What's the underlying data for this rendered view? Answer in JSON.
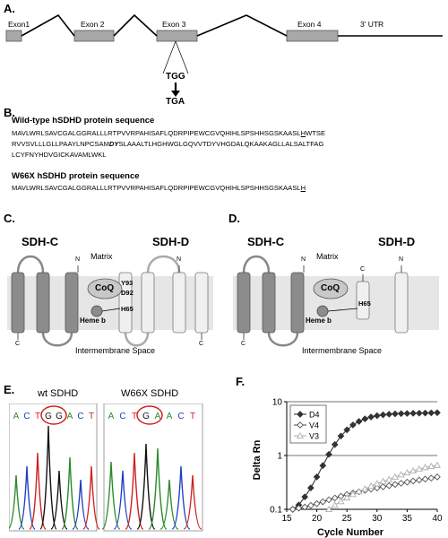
{
  "panels": {
    "a": "A.",
    "b": "B.",
    "c": "C.",
    "d": "D.",
    "e": "E.",
    "f": "F."
  },
  "gene": {
    "exons": [
      "Exon1",
      "Exon 2",
      "Exon 3",
      "Exon 4"
    ],
    "utr": "3' UTR",
    "codon_wt": "TGG",
    "codon_mut": "TGA"
  },
  "sequences": {
    "wt_title": "Wild-type hSDHD protein sequence",
    "wt_line1_a": "MAVLWRLSAVCGALGGRALLLRTPVVRPAHISAFLQDRPIPEWCGVQHIHLSPSHHSGSKAASL",
    "wt_line1_b": "H",
    "wt_line1_c": "WTSE",
    "wt_line2_a": "RVVSVLLLGLLPAAYLNPCSAM",
    "wt_line2_b": "DY",
    "wt_line2_c": "SLAAALTLHGHWGLGQVVTDYVHGDALQKAAKAGLLALSALTFAG",
    "wt_line3": "LCYFNYHDVGICKAVAMLWKL",
    "mut_title": "W66X hSDHD protein sequence",
    "mut_line1_a": "MAVLWRLSAVCGALGGRALLLRTPVVRPAHISAFLQDRPIPEWCGVQHIHLSPSHHSGSKAASL",
    "mut_line1_b": "H"
  },
  "membrane_c": {
    "sdhc": "SDH-C",
    "sdhd": "SDH-D",
    "matrix": "Matrix",
    "coq": "CoQ",
    "heme": "Heme b",
    "y93": "Y93",
    "d92": "D92",
    "h65": "H65",
    "n1": "N",
    "n2": "N",
    "c1": "C",
    "c2": "C",
    "ims": "Intermembrane Space"
  },
  "membrane_d": {
    "sdhc": "SDH-C",
    "sdhd": "SDH-D",
    "matrix": "Matrix",
    "coq": "CoQ",
    "heme": "Heme b",
    "h65": "H65",
    "n1": "N",
    "n2": "N",
    "c1": "C",
    "c2": "C",
    "ims": "Intermembrane Space"
  },
  "chromatograms": {
    "wt_title": "wt SDHD",
    "mut_title": "W66X SDHD",
    "wt_bases": [
      "A",
      "C",
      "T",
      "G",
      "G",
      "A",
      "C",
      "T"
    ],
    "mut_bases": [
      "A",
      "C",
      "T",
      "G",
      "A",
      "A",
      "C",
      "T"
    ],
    "base_colors": {
      "A": "#2a8a2a",
      "C": "#1f3fbf",
      "G": "#111111",
      "T": "#d02020"
    },
    "circle_color": "#d02020"
  },
  "chart_data": {
    "type": "line",
    "xlabel": "Cycle Number",
    "ylabel": "Delta Rn",
    "x_ticks": [
      15,
      20,
      25,
      30,
      35,
      40
    ],
    "y_ticks": [
      0.1,
      1,
      10
    ],
    "xlim": [
      15,
      40
    ],
    "ylim": [
      0.1,
      10
    ],
    "yscale": "log",
    "legend_position": "top-left",
    "series": [
      {
        "name": "D4",
        "color": "#333333",
        "marker": "diamond-filled",
        "x": [
          16,
          17,
          18,
          19,
          20,
          21,
          22,
          23,
          24,
          25,
          26,
          27,
          28,
          29,
          30,
          31,
          32,
          33,
          34,
          35,
          36,
          37,
          38,
          39,
          40
        ],
        "y": [
          0.1,
          0.12,
          0.17,
          0.25,
          0.4,
          0.65,
          1.05,
          1.6,
          2.3,
          3.0,
          3.7,
          4.3,
          4.8,
          5.2,
          5.5,
          5.7,
          5.85,
          5.95,
          6.0,
          6.05,
          6.1,
          6.12,
          6.15,
          6.2,
          6.25
        ]
      },
      {
        "name": "V4",
        "color": "#555555",
        "marker": "diamond-open",
        "x": [
          16,
          17,
          18,
          19,
          20,
          21,
          22,
          23,
          24,
          25,
          26,
          27,
          28,
          29,
          30,
          31,
          32,
          33,
          34,
          35,
          36,
          37,
          38,
          39,
          40
        ],
        "y": [
          0.1,
          0.105,
          0.11,
          0.118,
          0.127,
          0.138,
          0.15,
          0.162,
          0.175,
          0.188,
          0.2,
          0.212,
          0.225,
          0.237,
          0.25,
          0.262,
          0.275,
          0.29,
          0.305,
          0.32,
          0.335,
          0.35,
          0.365,
          0.38,
          0.4
        ]
      },
      {
        "name": "V3",
        "color": "#b0b0b0",
        "marker": "triangle-open",
        "x": [
          22,
          23,
          24,
          25,
          26,
          27,
          28,
          29,
          30,
          31,
          32,
          33,
          34,
          35,
          36,
          37,
          38,
          39,
          40
        ],
        "y": [
          0.1,
          0.12,
          0.14,
          0.165,
          0.19,
          0.215,
          0.24,
          0.27,
          0.3,
          0.33,
          0.36,
          0.4,
          0.44,
          0.48,
          0.52,
          0.56,
          0.6,
          0.63,
          0.66
        ]
      }
    ]
  }
}
